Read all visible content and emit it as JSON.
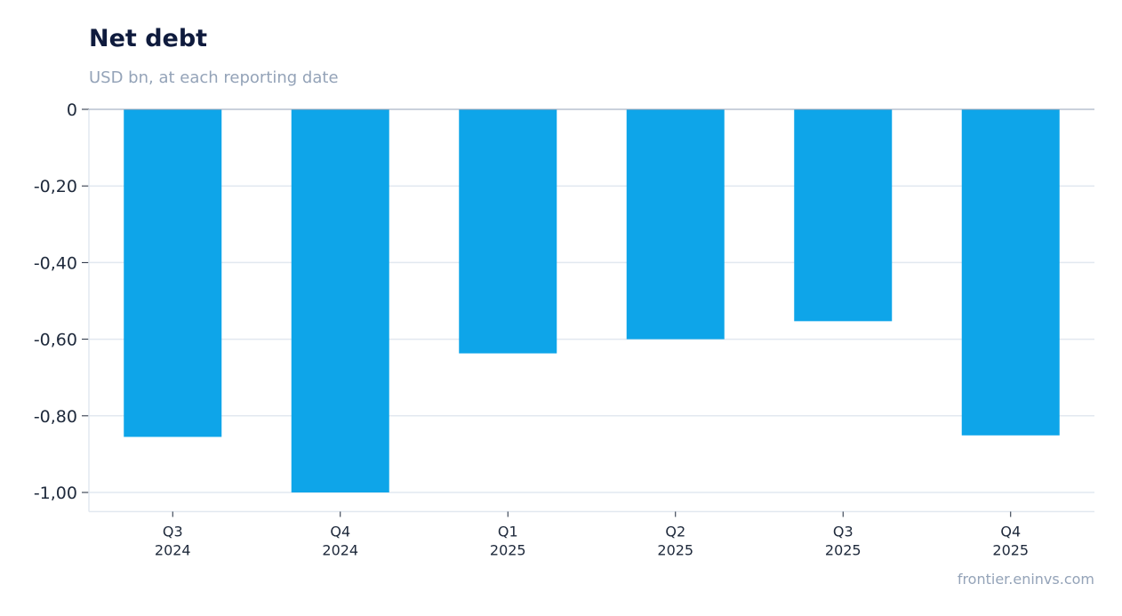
{
  "header": {
    "title": "Net debt",
    "subtitle": "USD bn, at each reporting date"
  },
  "footer": {
    "source": "frontier.eninvs.com"
  },
  "colors": {
    "bar": "#0ea5e9",
    "grid": "#e2e8f0",
    "zero_line": "#94a3b8",
    "title": "#0f1b3d",
    "muted": "#94a3b8",
    "tick_text": "#1e293b"
  },
  "chart_data": {
    "type": "bar",
    "title": "Net debt",
    "subtitle": "USD bn, at each reporting date",
    "categories": [
      [
        "Q3",
        "2024"
      ],
      [
        "Q4",
        "2024"
      ],
      [
        "Q1",
        "2025"
      ],
      [
        "Q2",
        "2025"
      ],
      [
        "Q3",
        "2025"
      ],
      [
        "Q4",
        "2025"
      ]
    ],
    "values": [
      -0.855,
      -1.0,
      -0.637,
      -0.6,
      -0.553,
      -0.851
    ],
    "ylim": [
      -1.05,
      0
    ],
    "yticks": [
      0,
      -0.2,
      -0.4,
      -0.6,
      -0.8,
      -1.0
    ],
    "ytick_labels": [
      "0",
      "-0,20",
      "-0,40",
      "-0,60",
      "-0,80",
      "-1,00"
    ],
    "grid": true,
    "legend": "none"
  }
}
